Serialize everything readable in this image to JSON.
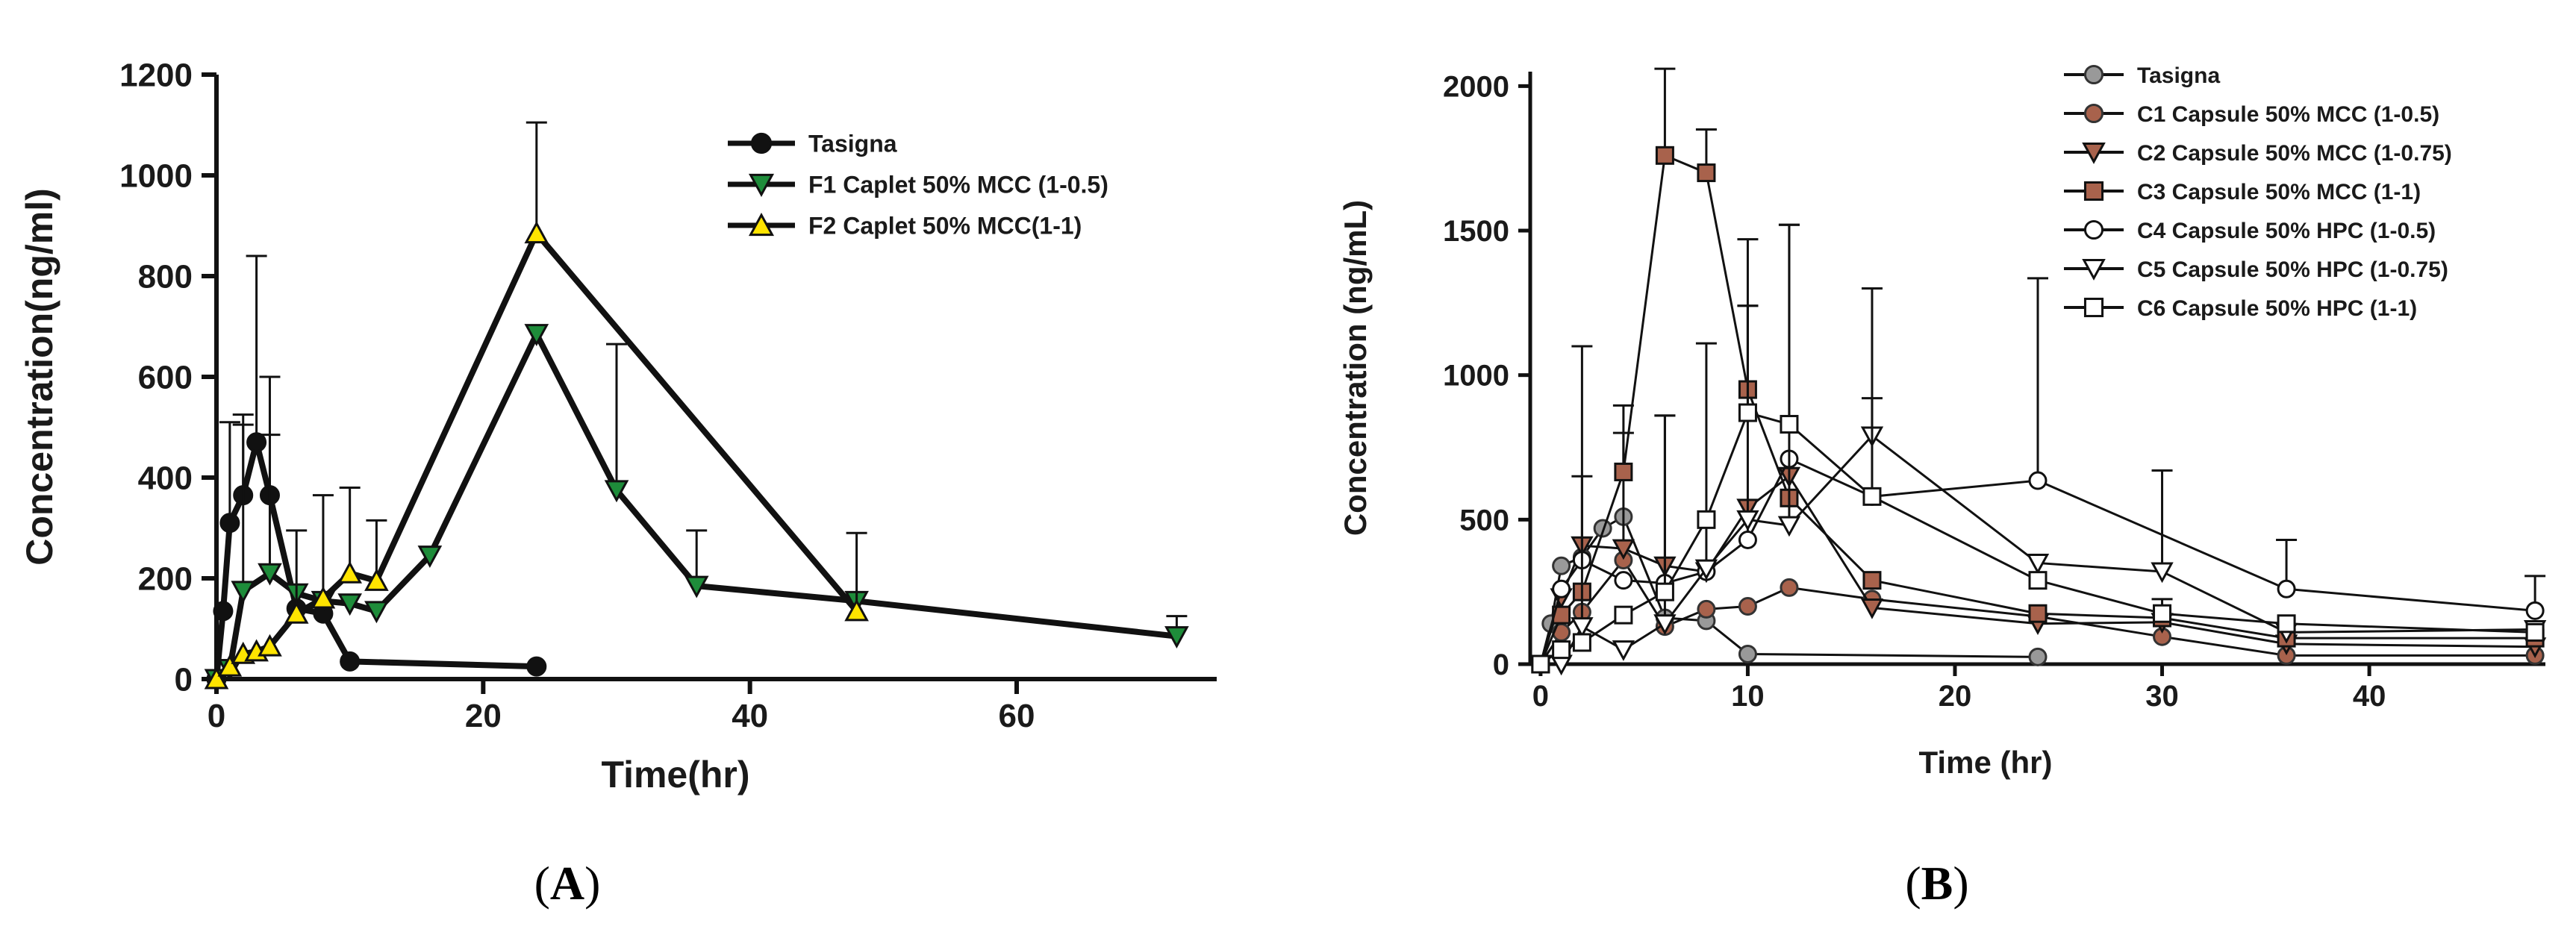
{
  "chart_data": [
    {
      "type": "line",
      "panel": "A",
      "title": "",
      "xlabel": "Time(hr)",
      "ylabel": "Concentration(ng/ml)",
      "xlim": [
        0,
        75
      ],
      "ylim": [
        0,
        1200
      ],
      "xticks": [
        "0",
        "20",
        "40",
        "60"
      ],
      "yticks": [
        "0",
        "200",
        "400",
        "600",
        "800",
        "1000",
        "1200"
      ],
      "legend_position": "top-right",
      "series": [
        {
          "name": "Tasigna",
          "marker": "circle",
          "color": "#111111",
          "x": [
            0,
            0.5,
            1,
            2,
            3,
            4,
            6,
            8,
            10,
            24
          ],
          "y": [
            0,
            135,
            310,
            365,
            470,
            365,
            140,
            130,
            35,
            25
          ],
          "err": [
            0,
            0,
            200,
            140,
            370,
            120,
            0,
            0,
            0,
            0
          ]
        },
        {
          "name": "F1 Caplet 50% MCC (1-0.5)",
          "marker": "triangle-down",
          "color": "#1e8c3a",
          "x": [
            0,
            1,
            2,
            4,
            6,
            8,
            10,
            12,
            16,
            24,
            30,
            36,
            48,
            72
          ],
          "y": [
            0,
            20,
            175,
            210,
            170,
            155,
            150,
            135,
            245,
            685,
            375,
            185,
            155,
            85
          ],
          "err": [
            0,
            0,
            350,
            390,
            0,
            0,
            0,
            0,
            0,
            0,
            290,
            110,
            0,
            40
          ]
        },
        {
          "name": "F2 Caplet 50%  MCC(1-1)",
          "marker": "triangle-up",
          "color": "#ffe400",
          "x": [
            0,
            1,
            2,
            3,
            4,
            6,
            8,
            10,
            12,
            24,
            48
          ],
          "y": [
            0,
            25,
            50,
            55,
            65,
            130,
            160,
            210,
            195,
            885,
            135
          ],
          "err": [
            0,
            0,
            0,
            0,
            0,
            165,
            205,
            170,
            120,
            220,
            155
          ]
        }
      ]
    },
    {
      "type": "line",
      "panel": "B",
      "title": "",
      "xlabel": "Time (hr)",
      "ylabel": "Concentration (ng/mL)",
      "xlim": [
        -0.5,
        48.5
      ],
      "ylim": [
        0,
        2050
      ],
      "xticks": [
        "0",
        "10",
        "20",
        "30",
        "40"
      ],
      "yticks": [
        "0",
        "500",
        "1000",
        "1500",
        "2000"
      ],
      "legend_position": "top-right",
      "series": [
        {
          "name": "Tasigna",
          "marker": "circle",
          "color": "#999999",
          "x": [
            0,
            0.5,
            1,
            2,
            3,
            4,
            6,
            8,
            10,
            24
          ],
          "y": [
            0,
            140,
            340,
            370,
            470,
            510,
            160,
            150,
            35,
            25
          ],
          "err": [
            0,
            0,
            0,
            0,
            0,
            0,
            0,
            0,
            0,
            0
          ]
        },
        {
          "name": "C1 Capsule 50% MCC (1-0.5)",
          "marker": "circle",
          "color": "#a8624c",
          "x": [
            0,
            1,
            2,
            4,
            6,
            8,
            10,
            12,
            16,
            24,
            30,
            36,
            48
          ],
          "y": [
            0,
            110,
            180,
            360,
            130,
            190,
            200,
            265,
            225,
            165,
            95,
            30,
            30
          ],
          "err": [
            0,
            0,
            0,
            0,
            0,
            0,
            0,
            0,
            0,
            0,
            0,
            0,
            0
          ]
        },
        {
          "name": "C2 Capsule 50% MCC (1-0.75)",
          "marker": "triangle-down",
          "color": "#a8624c",
          "x": [
            0,
            1,
            2,
            4,
            6,
            8,
            10,
            12,
            16,
            24,
            30,
            36,
            48
          ],
          "y": [
            0,
            230,
            410,
            400,
            340,
            320,
            540,
            650,
            195,
            140,
            145,
            70,
            60
          ],
          "err": [
            0,
            0,
            0,
            400,
            0,
            0,
            0,
            0,
            0,
            0,
            0,
            0,
            0
          ]
        },
        {
          "name": "C3 Capsule 50% MCC (1-1)",
          "marker": "square",
          "color": "#a8624c",
          "x": [
            0,
            1,
            2,
            4,
            6,
            8,
            10,
            12,
            16,
            24,
            30,
            36,
            48
          ],
          "y": [
            0,
            170,
            250,
            665,
            1760,
            1700,
            950,
            575,
            290,
            175,
            160,
            90,
            90
          ],
          "err": [
            0,
            0,
            0,
            230,
            300,
            150,
            520,
            0,
            0,
            0,
            0,
            0,
            0
          ]
        },
        {
          "name": "C4 Capsule 50% HPC (1-0.5)",
          "marker": "circle-open",
          "color": "#ffffff",
          "x": [
            0,
            1,
            2,
            4,
            6,
            8,
            10,
            12,
            16,
            24,
            36,
            48
          ],
          "y": [
            0,
            260,
            360,
            290,
            280,
            320,
            430,
            710,
            580,
            635,
            260,
            185
          ],
          "err": [
            0,
            0,
            740,
            0,
            580,
            0,
            810,
            0,
            0,
            700,
            170,
            120
          ]
        },
        {
          "name": "C5 Capsule 50% HPC (1-0.75)",
          "marker": "triangle-down-open",
          "color": "#ffffff",
          "x": [
            0,
            1,
            2,
            4,
            6,
            8,
            10,
            12,
            16,
            24,
            30,
            36,
            48
          ],
          "y": [
            0,
            0,
            130,
            50,
            140,
            330,
            500,
            480,
            790,
            350,
            320,
            110,
            120
          ],
          "err": [
            0,
            0,
            520,
            0,
            720,
            780,
            0,
            1040,
            510,
            0,
            350,
            0,
            0
          ]
        },
        {
          "name": "C6 Capsule 50% HPC (1-1)",
          "marker": "square-open",
          "color": "#ffffff",
          "x": [
            0,
            1,
            2,
            4,
            6,
            8,
            10,
            12,
            16,
            24,
            30,
            36,
            48
          ],
          "y": [
            0,
            50,
            75,
            170,
            250,
            500,
            870,
            830,
            580,
            290,
            175,
            140,
            110
          ],
          "err": [
            0,
            0,
            0,
            0,
            0,
            0,
            370,
            690,
            340,
            0,
            50,
            0,
            0
          ]
        }
      ]
    }
  ],
  "panels": {
    "a": {
      "open": "(",
      "letter": "A",
      "close": ")"
    },
    "b": {
      "open": "(",
      "letter": "B",
      "close": ")"
    }
  }
}
